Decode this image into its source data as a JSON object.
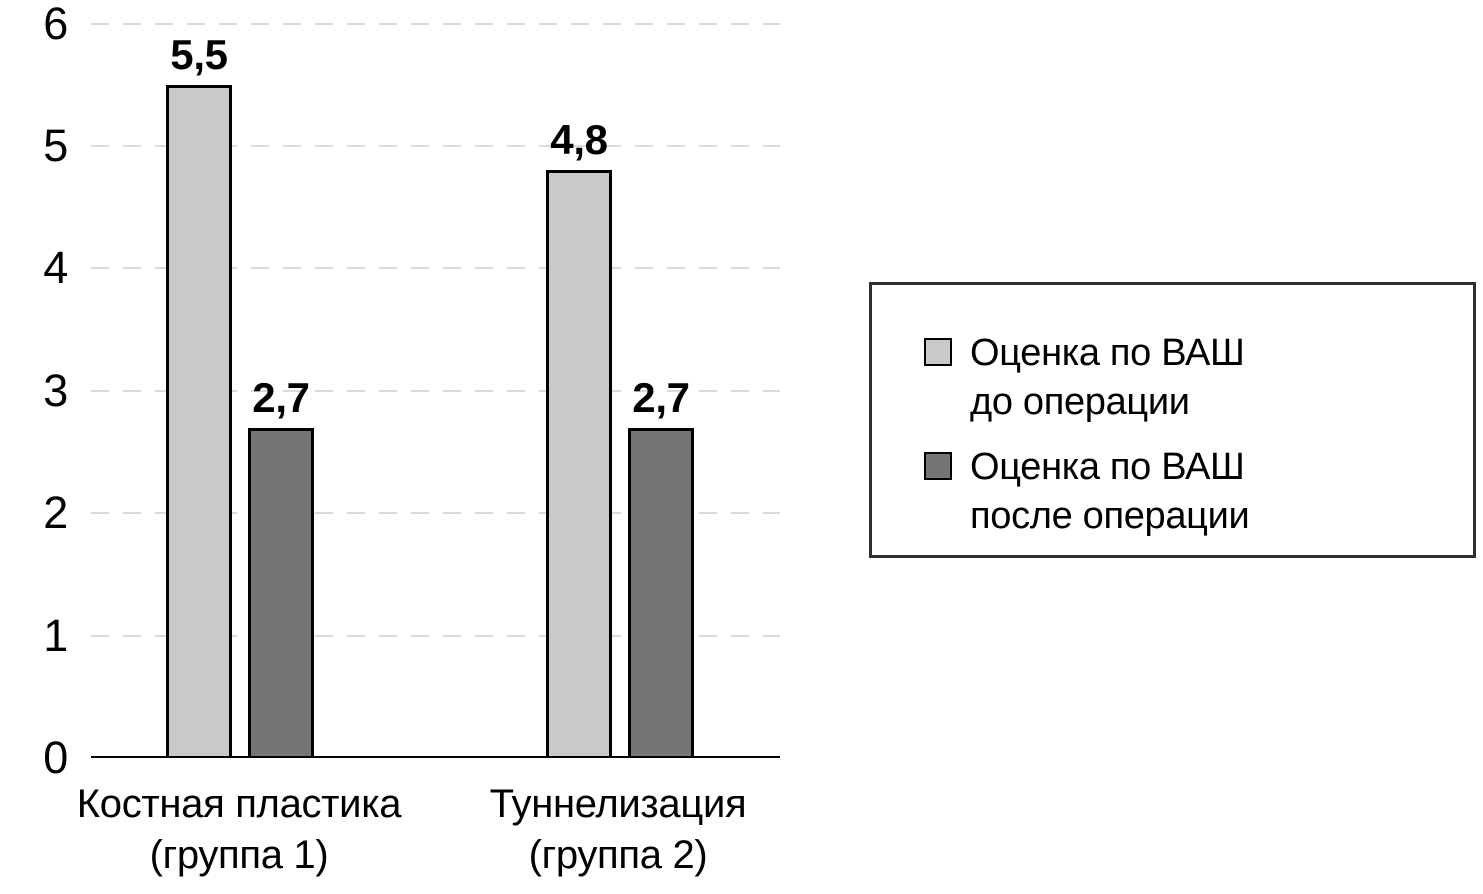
{
  "chart_data": {
    "type": "bar",
    "title": "",
    "xlabel": "",
    "ylabel": "",
    "ylim": [
      0,
      6
    ],
    "y_ticks": [
      0,
      1,
      2,
      3,
      4,
      5,
      6
    ],
    "grid": "horizontal dashed",
    "legend_position": "right boxed",
    "categories": [
      {
        "line1": "Костная пластика",
        "line2": "(группа 1)"
      },
      {
        "line1": "Туннелизация",
        "line2": "(группа 2)"
      }
    ],
    "series": [
      {
        "name": "Оценка по ВАШ до операции",
        "color": "#c9c9c9",
        "values": [
          5.5,
          4.8
        ],
        "labels": [
          "5,5",
          "4,8"
        ]
      },
      {
        "name": "Оценка по ВАШ после операции",
        "color": "#757575",
        "values": [
          2.7,
          2.7
        ],
        "labels": [
          "2,7",
          "2,7"
        ]
      }
    ],
    "legend": [
      {
        "line1": "Оценка по ВАШ",
        "line2": "до операции",
        "color": "#c9c9c9"
      },
      {
        "line1": "Оценка по ВАШ",
        "line2": "после операции",
        "color": "#757575"
      }
    ],
    "colors": {
      "bar_border": "#000000",
      "axis": "#000000",
      "gridline": "#d9d9d9",
      "text": "#000000",
      "legend_border": "#2f2f2f"
    }
  }
}
